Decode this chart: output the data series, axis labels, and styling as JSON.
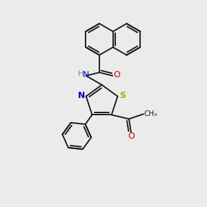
{
  "bg_color": "#ebebeb",
  "bond_color": "#1a1a1a",
  "bond_width": 1.4,
  "N_color": "#0000cc",
  "S_color": "#aaaa00",
  "O_color": "#cc0000",
  "H_color": "#4a9a8a",
  "figsize": [
    3.0,
    3.0
  ],
  "dpi": 100,
  "xlim": [
    -1.8,
    2.2
  ],
  "ylim": [
    -2.5,
    2.5
  ]
}
